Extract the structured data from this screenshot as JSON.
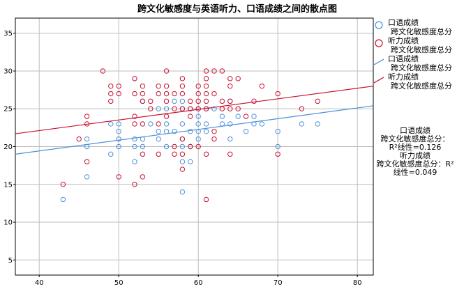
{
  "chart_data": {
    "type": "scatter",
    "title": "跨文化敏感度与英语听力、口语成绩之间的散点图",
    "xlim": [
      37,
      82
    ],
    "ylim": [
      3,
      37
    ],
    "x_ticks": [
      40,
      50,
      60,
      70,
      80
    ],
    "y_ticks": [
      5,
      10,
      15,
      20,
      25,
      30,
      35
    ],
    "grid": true,
    "legend_position": "right",
    "series": [
      {
        "name": "口语成绩",
        "name_line2": "跨文化敏感度总分",
        "marker": "circle",
        "color": "#4a90d9",
        "points": [
          [
            43,
            13
          ],
          [
            46,
            16
          ],
          [
            46,
            20
          ],
          [
            46,
            21
          ],
          [
            49,
            19
          ],
          [
            49,
            23
          ],
          [
            50,
            20
          ],
          [
            50,
            21
          ],
          [
            50,
            22
          ],
          [
            50,
            23
          ],
          [
            52,
            18
          ],
          [
            52,
            20
          ],
          [
            52,
            21
          ],
          [
            53,
            20
          ],
          [
            53,
            21
          ],
          [
            53,
            26
          ],
          [
            54,
            23
          ],
          [
            55,
            21
          ],
          [
            55,
            22
          ],
          [
            55,
            25
          ],
          [
            56,
            20
          ],
          [
            56,
            22
          ],
          [
            56,
            23
          ],
          [
            56,
            25
          ],
          [
            57,
            22
          ],
          [
            57,
            26
          ],
          [
            58,
            14
          ],
          [
            58,
            18
          ],
          [
            58,
            20
          ],
          [
            58,
            21
          ],
          [
            58,
            23
          ],
          [
            58,
            25
          ],
          [
            58,
            26
          ],
          [
            59,
            18
          ],
          [
            59,
            20
          ],
          [
            59,
            22
          ],
          [
            59,
            25
          ],
          [
            60,
            21
          ],
          [
            60,
            22
          ],
          [
            60,
            23
          ],
          [
            60,
            24
          ],
          [
            60,
            25
          ],
          [
            61,
            22
          ],
          [
            61,
            23
          ],
          [
            61,
            25
          ],
          [
            62,
            25
          ],
          [
            63,
            23
          ],
          [
            63,
            24
          ],
          [
            64,
            21
          ],
          [
            64,
            23
          ],
          [
            64,
            26
          ],
          [
            65,
            24
          ],
          [
            66,
            22
          ],
          [
            67,
            23
          ],
          [
            67,
            24
          ],
          [
            68,
            23
          ],
          [
            70,
            20
          ],
          [
            70,
            22
          ],
          [
            73,
            23
          ],
          [
            75,
            23
          ]
        ]
      },
      {
        "name": "听力成绩",
        "name_line2": "跨文化敏感度总分",
        "marker": "circle",
        "color": "#c8102e",
        "points": [
          [
            43,
            15
          ],
          [
            45,
            21
          ],
          [
            46,
            18
          ],
          [
            46,
            23
          ],
          [
            46,
            24
          ],
          [
            48,
            30
          ],
          [
            49,
            26
          ],
          [
            49,
            27
          ],
          [
            49,
            28
          ],
          [
            50,
            16
          ],
          [
            50,
            27
          ],
          [
            50,
            28
          ],
          [
            52,
            15
          ],
          [
            52,
            23
          ],
          [
            52,
            24
          ],
          [
            52,
            27
          ],
          [
            52,
            29
          ],
          [
            53,
            16
          ],
          [
            53,
            19
          ],
          [
            53,
            23
          ],
          [
            53,
            26
          ],
          [
            53,
            27
          ],
          [
            53,
            28
          ],
          [
            54,
            25
          ],
          [
            54,
            26
          ],
          [
            55,
            19
          ],
          [
            55,
            23
          ],
          [
            55,
            27
          ],
          [
            55,
            28
          ],
          [
            56,
            24
          ],
          [
            56,
            26
          ],
          [
            56,
            27
          ],
          [
            56,
            28
          ],
          [
            56,
            30
          ],
          [
            57,
            19
          ],
          [
            57,
            20
          ],
          [
            57,
            25
          ],
          [
            57,
            27
          ],
          [
            58,
            17
          ],
          [
            58,
            19
          ],
          [
            58,
            21
          ],
          [
            58,
            25
          ],
          [
            58,
            27
          ],
          [
            58,
            28
          ],
          [
            58,
            29
          ],
          [
            59,
            20
          ],
          [
            59,
            24
          ],
          [
            59,
            25
          ],
          [
            59,
            26
          ],
          [
            60,
            20
          ],
          [
            60,
            25
          ],
          [
            60,
            26
          ],
          [
            60,
            27
          ],
          [
            60,
            28
          ],
          [
            61,
            13
          ],
          [
            61,
            19
          ],
          [
            61,
            25
          ],
          [
            61,
            26
          ],
          [
            61,
            27
          ],
          [
            61,
            28
          ],
          [
            61,
            29
          ],
          [
            61,
            30
          ],
          [
            62,
            21
          ],
          [
            62,
            22
          ],
          [
            62,
            27
          ],
          [
            62,
            30
          ],
          [
            63,
            25
          ],
          [
            63,
            26
          ],
          [
            63,
            30
          ],
          [
            64,
            19
          ],
          [
            64,
            25
          ],
          [
            64,
            26
          ],
          [
            64,
            28
          ],
          [
            64,
            29
          ],
          [
            65,
            25
          ],
          [
            65,
            29
          ],
          [
            66,
            24
          ],
          [
            67,
            26
          ],
          [
            68,
            28
          ],
          [
            70,
            19
          ],
          [
            70,
            27
          ],
          [
            73,
            25
          ],
          [
            75,
            26
          ]
        ]
      }
    ],
    "fit_lines": [
      {
        "name": "口语成绩",
        "name_line2": "跨文化敏感度总分",
        "type": "linear",
        "color": "#4a90d9",
        "endpoints": [
          [
            37,
            19.0
          ],
          [
            82,
            25.4
          ]
        ]
      },
      {
        "name": "听力成绩",
        "name_line2": "跨文化敏感度总分",
        "type": "linear",
        "color": "#c8102e",
        "endpoints": [
          [
            37,
            21.7
          ],
          [
            82,
            28.0
          ]
        ]
      }
    ],
    "annotations": [
      "口语成绩",
      "跨文化敏感度总分：",
      "R²线性=0.126",
      "听力成绩",
      "跨文化敏感度总分：R²",
      "线性=0.049"
    ]
  }
}
